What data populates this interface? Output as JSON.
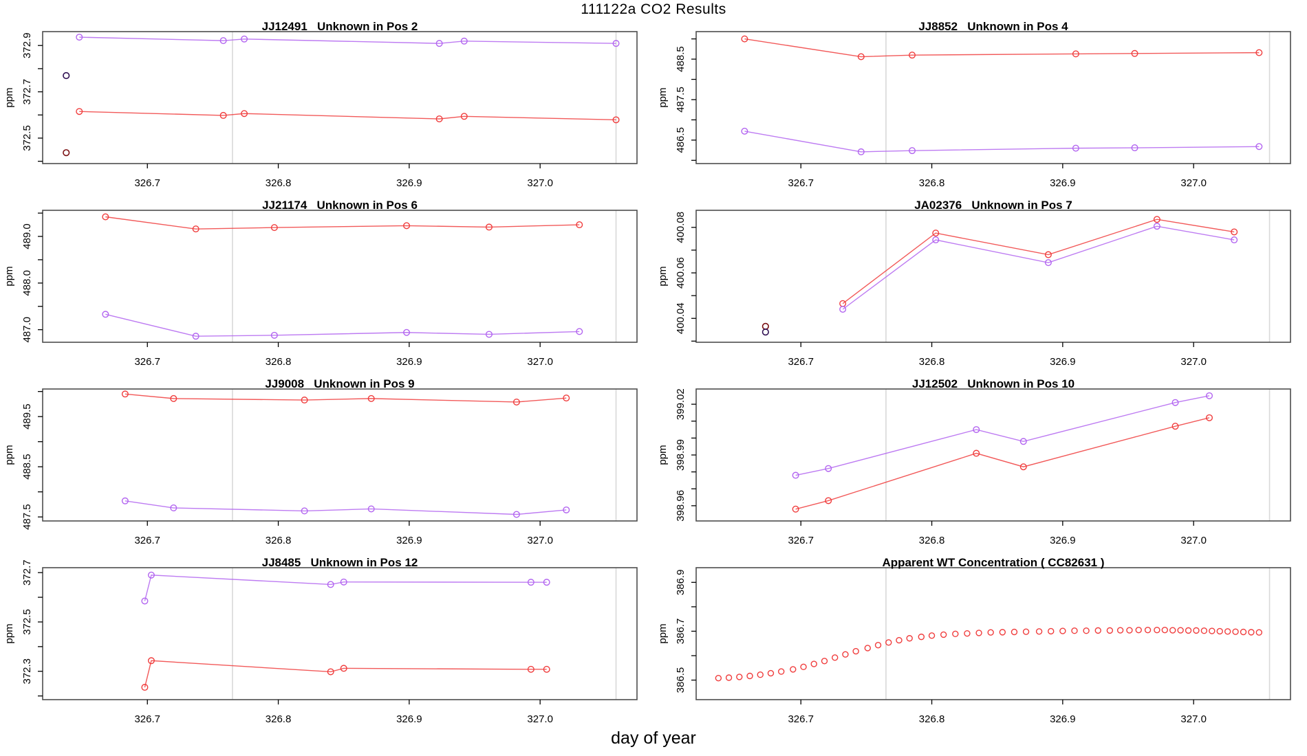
{
  "page_title": "111122a  CO2 Results",
  "x_axis_label": "day of year",
  "colors": {
    "sample_red": "#f03c3c",
    "reference_purple": "#b264f0",
    "outlier_dark_red": "#7b1113",
    "outlier_dark_purple": "#2f0f52",
    "gridline": "#d8d8d8",
    "frame": "#4d4d4d",
    "text": "#000000"
  },
  "axis": {
    "xlim": [
      326.62,
      327.074
    ],
    "xticks": [
      326.7,
      326.8,
      326.9,
      327.0
    ],
    "xtick_labels": [
      "326.7",
      "326.8",
      "326.9",
      "327.0"
    ],
    "gridlines_x": [
      326.765,
      327.058
    ]
  },
  "chart_data": [
    {
      "type": "line",
      "title": "JJ12491   Unknown in Pos 2",
      "ylabel": "ppm",
      "ylim": [
        372.39,
        372.96
      ],
      "yticks": [
        372.4,
        372.5,
        372.6,
        372.7,
        372.8,
        372.9
      ],
      "ytick_labels": [
        "",
        "372.5",
        "",
        "372.7",
        "",
        "372.9"
      ],
      "series": [
        {
          "name": "red",
          "color": "#f03c3c",
          "x": [
            326.648,
            326.758,
            326.774,
            326.923,
            326.942,
            327.058
          ],
          "y": [
            372.615,
            372.598,
            372.606,
            372.583,
            372.594,
            372.579
          ]
        },
        {
          "name": "purple",
          "color": "#b264f0",
          "x": [
            326.648,
            326.758,
            326.774,
            326.923,
            326.942,
            327.058
          ],
          "y": [
            372.936,
            372.921,
            372.928,
            372.909,
            372.919,
            372.909
          ]
        }
      ],
      "outliers": [
        {
          "color": "#2f0f52",
          "x": 326.638,
          "y": 372.77
        },
        {
          "color": "#7b1113",
          "x": 326.638,
          "y": 372.437
        }
      ]
    },
    {
      "type": "line",
      "title": "JJ8852   Unknown in Pos 4",
      "ylabel": "ppm",
      "ylim": [
        485.92,
        489.18
      ],
      "yticks": [
        486.0,
        486.5,
        487.0,
        487.5,
        488.0,
        488.5,
        489.0
      ],
      "ytick_labels": [
        "",
        "486.5",
        "",
        "487.5",
        "",
        "488.5",
        ""
      ],
      "series": [
        {
          "name": "red",
          "color": "#f03c3c",
          "x": [
            326.657,
            326.746,
            326.785,
            326.91,
            326.955,
            327.05
          ],
          "y": [
            489.0,
            488.56,
            488.6,
            488.63,
            488.64,
            488.66
          ]
        },
        {
          "name": "purple",
          "color": "#b264f0",
          "x": [
            326.657,
            326.746,
            326.785,
            326.91,
            326.955,
            327.05
          ],
          "y": [
            486.72,
            486.21,
            486.24,
            486.3,
            486.31,
            486.34
          ]
        }
      ],
      "outliers": []
    },
    {
      "type": "line",
      "title": "JJ21174   Unknown in Pos 6",
      "ylabel": "ppm",
      "ylim": [
        486.73,
        489.56
      ],
      "yticks": [
        487.0,
        487.5,
        488.0,
        488.5,
        489.0,
        489.5
      ],
      "ytick_labels": [
        "487.0",
        "",
        "488.0",
        "",
        "489.0",
        ""
      ],
      "series": [
        {
          "name": "red",
          "color": "#f03c3c",
          "x": [
            326.668,
            326.737,
            326.797,
            326.898,
            326.961,
            327.03
          ],
          "y": [
            489.42,
            489.16,
            489.19,
            489.23,
            489.2,
            489.25
          ]
        },
        {
          "name": "purple",
          "color": "#b264f0",
          "x": [
            326.668,
            326.737,
            326.797,
            326.898,
            326.961,
            327.03
          ],
          "y": [
            487.33,
            486.86,
            486.88,
            486.94,
            486.9,
            486.96
          ]
        }
      ],
      "outliers": []
    },
    {
      "type": "line",
      "title": "JA02376   Unknown in Pos 7",
      "ylabel": "ppm",
      "ylim": [
        400.0295,
        400.0875
      ],
      "yticks": [
        400.03,
        400.04,
        400.05,
        400.06,
        400.07,
        400.08
      ],
      "ytick_labels": [
        "",
        "400.04",
        "",
        "400.06",
        "",
        "400.08"
      ],
      "series": [
        {
          "name": "red",
          "color": "#f03c3c",
          "x": [
            326.732,
            326.803,
            326.889,
            326.972,
            327.031
          ],
          "y": [
            400.0465,
            400.0775,
            400.068,
            400.0835,
            400.078
          ]
        },
        {
          "name": "purple",
          "color": "#b264f0",
          "x": [
            326.732,
            326.803,
            326.889,
            326.972,
            327.031
          ],
          "y": [
            400.044,
            400.0745,
            400.0645,
            400.0805,
            400.0745
          ]
        }
      ],
      "outliers": [
        {
          "color": "#7b1113",
          "x": 326.673,
          "y": 400.0365
        },
        {
          "color": "#2f0f52",
          "x": 326.673,
          "y": 400.034
        }
      ]
    },
    {
      "type": "line",
      "title": "JJ9008   Unknown in Pos 9",
      "ylabel": "ppm",
      "ylim": [
        487.42,
        490.05
      ],
      "yticks": [
        487.5,
        488.0,
        488.5,
        489.0,
        489.5,
        490.0
      ],
      "ytick_labels": [
        "487.5",
        "",
        "488.5",
        "",
        "489.5",
        ""
      ],
      "series": [
        {
          "name": "red",
          "color": "#f03c3c",
          "x": [
            326.683,
            326.72,
            326.82,
            326.871,
            326.982,
            327.02
          ],
          "y": [
            489.95,
            489.86,
            489.83,
            489.86,
            489.79,
            489.87
          ]
        },
        {
          "name": "purple",
          "color": "#b264f0",
          "x": [
            326.683,
            326.72,
            326.82,
            326.871,
            326.982,
            327.02
          ],
          "y": [
            487.82,
            487.68,
            487.62,
            487.66,
            487.55,
            487.64
          ]
        }
      ],
      "outliers": []
    },
    {
      "type": "line",
      "title": "JJ12502   Unknown in Pos 10",
      "ylabel": "ppm",
      "ylim": [
        398.951,
        399.029
      ],
      "yticks": [
        398.96,
        398.97,
        398.98,
        398.99,
        399.0,
        399.01,
        399.02
      ],
      "ytick_labels": [
        "398.96",
        "",
        "",
        "398.99",
        "",
        "",
        "399.02"
      ],
      "series": [
        {
          "name": "red",
          "color": "#f03c3c",
          "x": [
            326.696,
            326.721,
            326.834,
            326.87,
            326.986,
            327.012
          ],
          "y": [
            398.958,
            398.963,
            398.991,
            398.983,
            399.007,
            399.012
          ]
        },
        {
          "name": "purple",
          "color": "#b264f0",
          "x": [
            326.696,
            326.721,
            326.834,
            326.87,
            326.986,
            327.012
          ],
          "y": [
            398.978,
            398.982,
            399.005,
            398.998,
            399.021,
            399.025
          ]
        }
      ],
      "outliers": []
    },
    {
      "type": "line",
      "title": "JJ8485   Unknown in Pos 12",
      "ylabel": "ppm",
      "ylim": [
        372.185,
        372.72
      ],
      "yticks": [
        372.2,
        372.3,
        372.4,
        372.5,
        372.6,
        372.7
      ],
      "ytick_labels": [
        "",
        "372.3",
        "",
        "372.5",
        "",
        "372.7"
      ],
      "series": [
        {
          "name": "red",
          "color": "#f03c3c",
          "x": [
            326.698,
            326.703,
            326.84,
            326.85,
            326.993,
            327.005
          ],
          "y": [
            372.235,
            372.343,
            372.298,
            372.312,
            372.308,
            372.308
          ]
        },
        {
          "name": "purple",
          "color": "#b264f0",
          "x": [
            326.698,
            326.703,
            326.84,
            326.85,
            326.993,
            327.005
          ],
          "y": [
            372.585,
            372.69,
            372.652,
            372.662,
            372.661,
            372.661
          ]
        }
      ],
      "outliers": []
    },
    {
      "type": "scatter",
      "title": "Apparent WT Concentration ( CC82631 )",
      "ylabel": "ppm",
      "ylim": [
        386.42,
        386.96
      ],
      "yticks": [
        386.5,
        386.6,
        386.7,
        386.8,
        386.9
      ],
      "ytick_labels": [
        "386.5",
        "",
        "386.7",
        "",
        "386.9"
      ],
      "series": [
        {
          "name": "wt-concentration",
          "color": "#f03c3c",
          "marker_only": true,
          "x": [
            326.637,
            326.645,
            326.653,
            326.661,
            326.669,
            326.677,
            326.685,
            326.694,
            326.702,
            326.71,
            326.718,
            326.726,
            326.734,
            326.742,
            326.751,
            326.759,
            326.767,
            326.775,
            326.783,
            326.792,
            326.8,
            326.809,
            326.818,
            326.827,
            326.836,
            326.845,
            326.854,
            326.863,
            326.872,
            326.882,
            326.891,
            326.9,
            326.909,
            326.918,
            326.927,
            326.936,
            326.944,
            326.951,
            326.958,
            326.965,
            326.972,
            326.978,
            326.984,
            326.99,
            326.996,
            327.002,
            327.008,
            327.014,
            327.02,
            327.026,
            327.032,
            327.038,
            327.044,
            327.05
          ],
          "y": [
            386.508,
            386.51,
            386.513,
            386.517,
            386.522,
            386.528,
            386.535,
            386.544,
            386.554,
            386.566,
            386.578,
            386.592,
            386.605,
            386.618,
            386.631,
            386.643,
            386.654,
            386.663,
            386.671,
            386.677,
            386.682,
            386.686,
            386.689,
            386.691,
            386.693,
            386.695,
            386.696,
            386.697,
            386.698,
            386.699,
            386.7,
            386.701,
            386.702,
            386.702,
            386.703,
            386.703,
            386.704,
            386.704,
            386.705,
            386.705,
            386.705,
            386.705,
            386.704,
            386.704,
            386.703,
            386.703,
            386.702,
            386.701,
            386.7,
            386.699,
            386.698,
            386.697,
            386.696,
            386.695
          ]
        }
      ],
      "outliers": []
    }
  ]
}
